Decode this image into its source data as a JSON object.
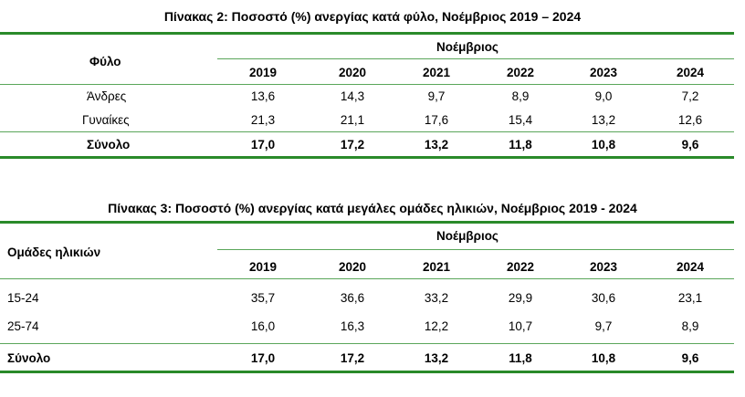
{
  "table2": {
    "title": "Πίνακας 2: Ποσοστό (%) ανεργίας κατά φύλο, Νοέμβριος 2019 – 2024",
    "row_header": "Φύλο",
    "group_header": "Νοέμβριος",
    "years": [
      "2019",
      "2020",
      "2021",
      "2022",
      "2023",
      "2024"
    ],
    "rows": [
      {
        "label": "Άνδρες",
        "values": [
          "13,6",
          "14,3",
          "9,7",
          "8,9",
          "9,0",
          "7,2"
        ]
      },
      {
        "label": "Γυναίκες",
        "values": [
          "21,3",
          "21,1",
          "17,6",
          "15,4",
          "13,2",
          "12,6"
        ]
      }
    ],
    "total": {
      "label": "Σύνολο",
      "values": [
        "17,0",
        "17,2",
        "13,2",
        "11,8",
        "10,8",
        "9,6"
      ]
    }
  },
  "table3": {
    "title": "Πίνακας 3: Ποσοστό (%) ανεργίας κατά μεγάλες ομάδες ηλικιών, Νοέμβριος 2019 - 2024",
    "row_header": "Ομάδες ηλικιών",
    "group_header": "Νοέμβριος",
    "years": [
      "2019",
      "2020",
      "2021",
      "2022",
      "2023",
      "2024"
    ],
    "rows": [
      {
        "label": "15-24",
        "values": [
          "35,7",
          "36,6",
          "33,2",
          "29,9",
          "30,6",
          "23,1"
        ]
      },
      {
        "label": "25-74",
        "values": [
          "16,0",
          "16,3",
          "12,2",
          "10,7",
          "9,7",
          "8,9"
        ]
      }
    ],
    "total": {
      "label": "Σύνολο",
      "values": [
        "17,0",
        "17,2",
        "13,2",
        "11,8",
        "10,8",
        "9,6"
      ]
    }
  },
  "colors": {
    "rule": "#2a8a2a"
  }
}
